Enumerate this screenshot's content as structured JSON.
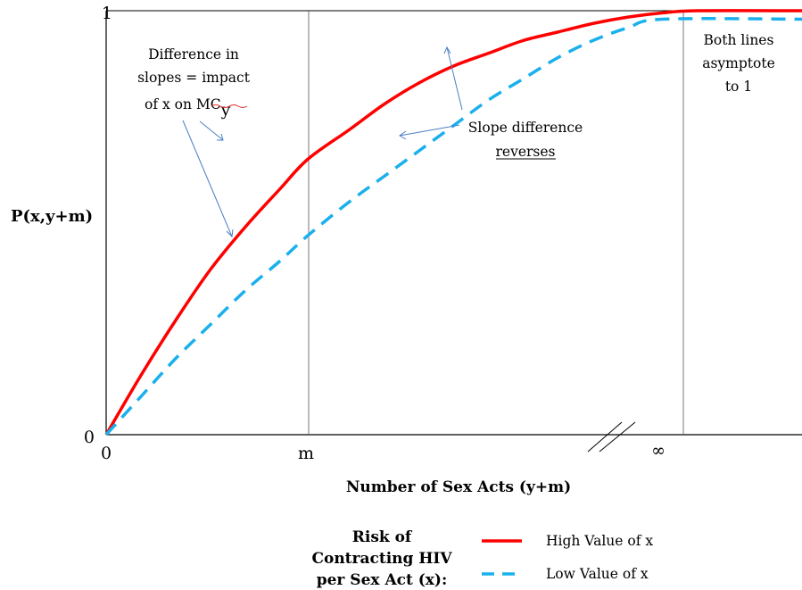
{
  "chart_data": {
    "type": "line",
    "title": "",
    "xlabel": "Number of Sex Acts (y+m)",
    "ylabel": "P(x,y+m)",
    "x_ticks": [
      "0",
      "m",
      "∞"
    ],
    "y_ticks": [
      "0",
      "1"
    ],
    "ylim": [
      0,
      1
    ],
    "grid": false,
    "series": [
      {
        "name": "High Value of x",
        "color": "#ff0000",
        "style": "solid",
        "points": [
          [
            0,
            0
          ],
          [
            0.05,
            0.14
          ],
          [
            0.1,
            0.27
          ],
          [
            0.15,
            0.39
          ],
          [
            0.2,
            0.49
          ],
          [
            0.25,
            0.58
          ],
          [
            0.29,
            0.65
          ],
          [
            0.35,
            0.72
          ],
          [
            0.4,
            0.78
          ],
          [
            0.45,
            0.83
          ],
          [
            0.5,
            0.87
          ],
          [
            0.55,
            0.9
          ],
          [
            0.6,
            0.93
          ],
          [
            0.65,
            0.95
          ],
          [
            0.7,
            0.97
          ],
          [
            0.75,
            0.985
          ],
          [
            0.8,
            0.995
          ],
          [
            0.85,
            1.0
          ],
          [
            1.0,
            1.0
          ]
        ]
      },
      {
        "name": "Low Value of x",
        "color": "#1ab0ec",
        "style": "dashed",
        "points": [
          [
            0,
            0
          ],
          [
            0.05,
            0.09
          ],
          [
            0.1,
            0.18
          ],
          [
            0.15,
            0.26
          ],
          [
            0.2,
            0.34
          ],
          [
            0.25,
            0.41
          ],
          [
            0.29,
            0.47
          ],
          [
            0.35,
            0.55
          ],
          [
            0.4,
            0.61
          ],
          [
            0.45,
            0.67
          ],
          [
            0.5,
            0.73
          ],
          [
            0.55,
            0.79
          ],
          [
            0.6,
            0.84
          ],
          [
            0.65,
            0.89
          ],
          [
            0.7,
            0.93
          ],
          [
            0.75,
            0.96
          ],
          [
            0.8,
            0.98
          ],
          [
            1.0,
            0.98
          ]
        ]
      }
    ],
    "annotations": {
      "slopes": [
        "Difference in",
        "slopes = impact",
        "of x on MC"
      ],
      "slopes_subscript": "y",
      "reverse_line1": "Slope difference",
      "reverse_line2": "reverses",
      "asymptote": [
        "Both lines",
        "asymptote",
        "to 1"
      ]
    },
    "legend": {
      "title": [
        "Risk of",
        "Contracting HIV",
        "per Sex Act (x):"
      ],
      "items": [
        "High Value of x",
        "Low Value of x"
      ]
    }
  }
}
